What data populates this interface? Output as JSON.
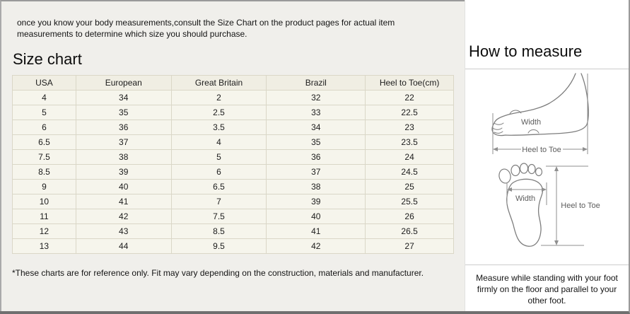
{
  "intro": {
    "text": "once you know your body measurements,consult the Size Chart on the product pages for actual item measurements to determine which size you should purchase."
  },
  "size_chart": {
    "title": "Size chart",
    "columns": [
      "USA",
      "European",
      "Great Britain",
      "Brazil",
      "Heel to Toe(cm)"
    ],
    "rows": [
      [
        "4",
        "34",
        "2",
        "32",
        "22"
      ],
      [
        "5",
        "35",
        "2.5",
        "33",
        "22.5"
      ],
      [
        "6",
        "36",
        "3.5",
        "34",
        "23"
      ],
      [
        "6.5",
        "37",
        "4",
        "35",
        "23.5"
      ],
      [
        "7.5",
        "38",
        "5",
        "36",
        "24"
      ],
      [
        "8.5",
        "39",
        "6",
        "37",
        "24.5"
      ],
      [
        "9",
        "40",
        "6.5",
        "38",
        "25"
      ],
      [
        "10",
        "41",
        "7",
        "39",
        "25.5"
      ],
      [
        "11",
        "42",
        "7.5",
        "40",
        "26"
      ],
      [
        "12",
        "43",
        "8.5",
        "41",
        "26.5"
      ],
      [
        "13",
        "44",
        "9.5",
        "42",
        "27"
      ]
    ],
    "footnote": "*These charts are for reference only. Fit may vary depending on the construction, materials and manufacturer."
  },
  "how_to_measure": {
    "title": "How to measure",
    "side_view": {
      "width_label": "Width",
      "heel_to_toe_label": "Heel to Toe"
    },
    "footprint": {
      "width_label": "Width",
      "heel_to_toe_label": "Heel to Toe"
    },
    "note": "Measure while standing with your foot firmly on the floor and parallel to your other foot."
  },
  "colors": {
    "left_panel_bg": "#f0efeb",
    "table_bg": "#f6f5ec",
    "table_header_bg": "#f0eee3",
    "table_border": "#dad7c7",
    "outer_border": "#9a9a9a",
    "divider": "#cccccc"
  }
}
